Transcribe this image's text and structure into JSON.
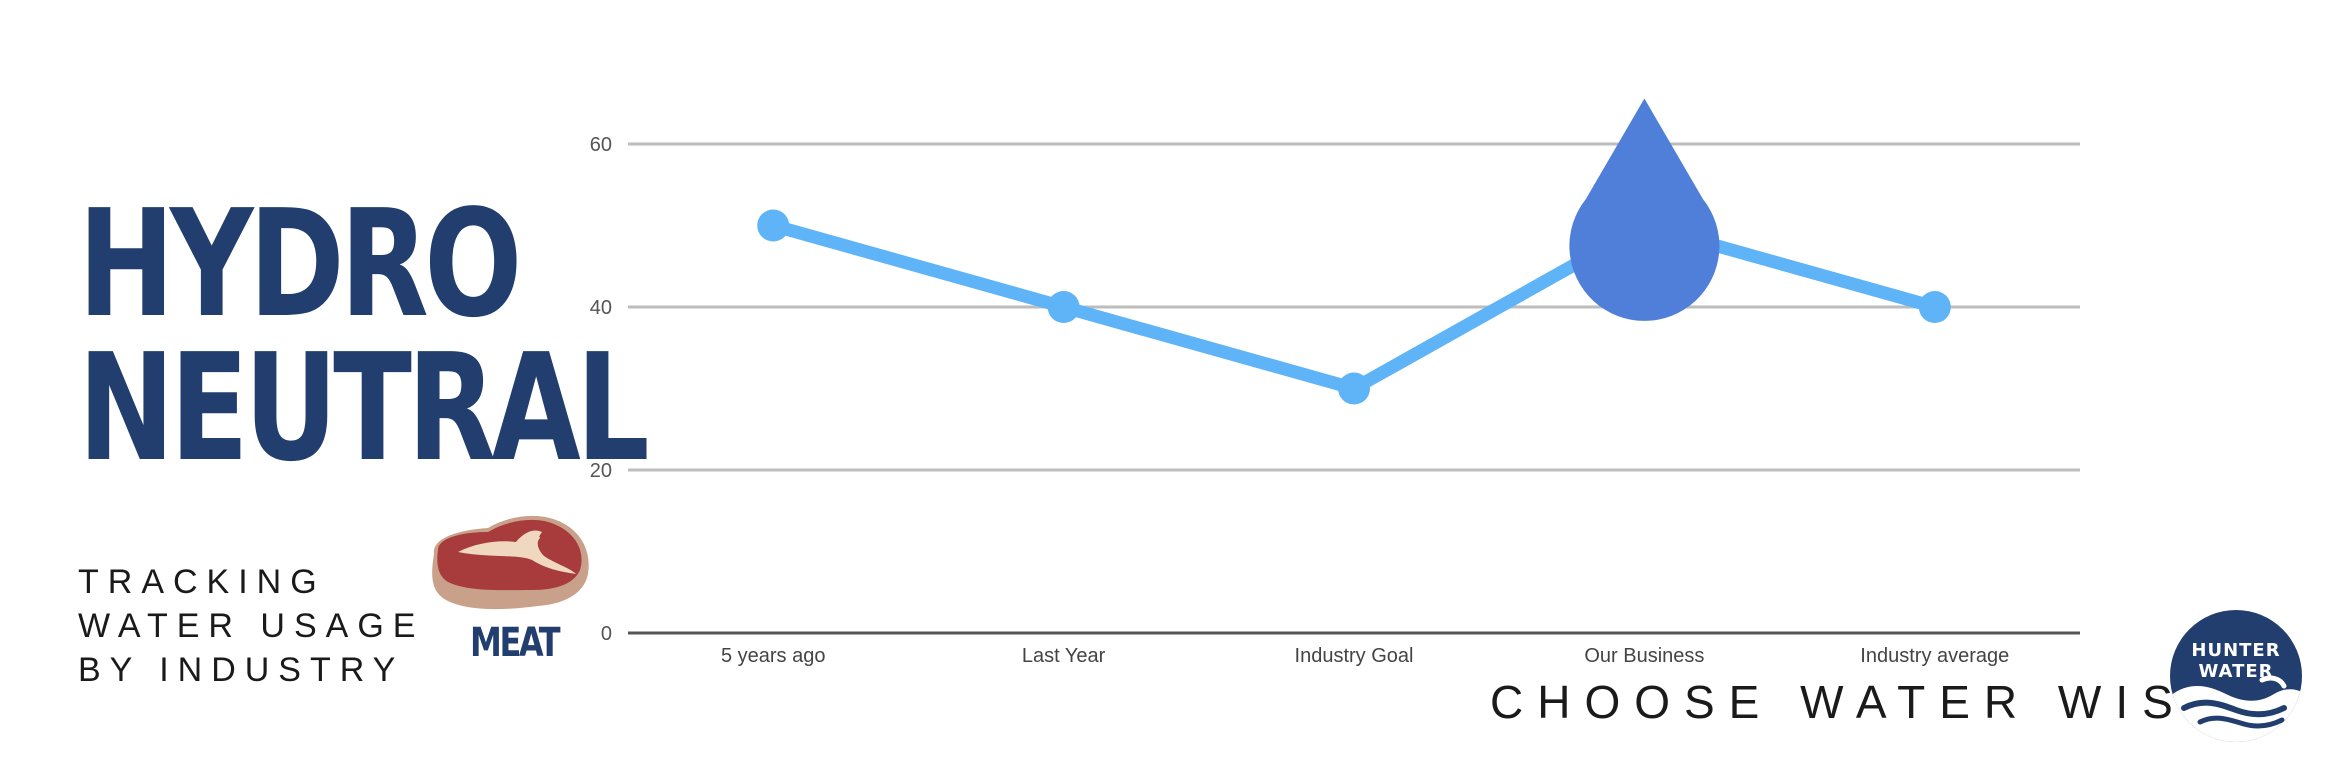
{
  "title": {
    "line1": "HYDRO",
    "line2": "NEUTRAL"
  },
  "subtitle": {
    "line1": "TRACKING",
    "line2": "WATER USAGE",
    "line3": "BY INDUSTRY"
  },
  "category_label": "MEAT",
  "tagline": "CHOOSE WATER WISE",
  "logo": {
    "line1": "HUNTER",
    "line2": "WATER"
  },
  "colors": {
    "navy": "#213e6e",
    "line": "#5fb4f7",
    "drop": "#4f7fd9",
    "grid": "#bdbdbd"
  },
  "icons": {
    "category": "steak-icon",
    "highlight": "water-drop-icon",
    "logo": "hunter-water-logo-icon"
  },
  "chart_data": {
    "type": "line",
    "categories": [
      "5 years ago",
      "Last Year",
      "Industry Goal",
      "Our Business",
      "Industry average"
    ],
    "values": [
      50,
      40,
      30,
      50,
      40
    ],
    "title": "",
    "xlabel": "",
    "ylabel": "",
    "ylim": [
      0,
      60
    ],
    "yticks": [
      0,
      20,
      40,
      60
    ],
    "grid": true,
    "legend": "none",
    "highlight_category": "Our Business"
  }
}
